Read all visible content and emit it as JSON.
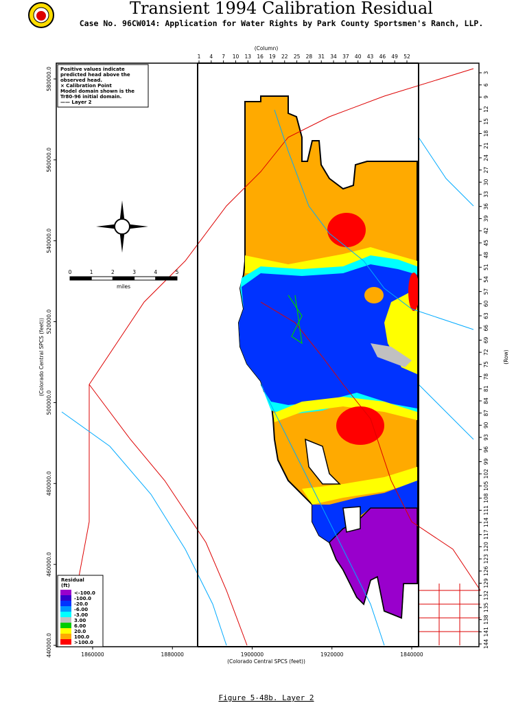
{
  "header": {
    "title": "Transient 1994 Calibration Residual",
    "subtitle": "Case No. 96CW014: Application for Water Rights by Park County Sportsmen's Ranch, LLP."
  },
  "axes": {
    "column_label": "(Column)",
    "columns": [
      "1",
      "4",
      "7",
      "10",
      "13",
      "16",
      "19",
      "22",
      "25",
      "28",
      "31",
      "34",
      "37",
      "40",
      "43",
      "46",
      "49",
      "52"
    ],
    "row_label": "(Row)",
    "rows": [
      "3",
      "6",
      "9",
      "12",
      "15",
      "18",
      "21",
      "24",
      "27",
      "30",
      "33",
      "36",
      "39",
      "42",
      "45",
      "48",
      "51",
      "54",
      "57",
      "60",
      "63",
      "66",
      "69",
      "72",
      "75",
      "78",
      "81",
      "84",
      "87",
      "90",
      "93",
      "96",
      "99",
      "102",
      "105",
      "108",
      "111",
      "114",
      "117",
      "120",
      "123",
      "126",
      "129",
      "132",
      "135",
      "138",
      "141",
      "144"
    ],
    "x_label": "(Colorado Central SPCS (feet))",
    "x_ticks": [
      "1860000",
      "1880000",
      "1900000",
      "1920000",
      "1840000"
    ],
    "y_label": "(Colorado Central SPCS (feet))",
    "y_ticks": [
      "580000.0",
      "560000.0",
      "540000.0",
      "520000.0",
      "500000.0",
      "480000.0",
      "460000.0",
      "440000.0"
    ]
  },
  "notes": [
    "Positive values indicate",
    "predicted head above the",
    "observed head.",
    "× Calibration Point",
    "Model domain shown is the",
    "Tr80-96 initial domain.",
    "—— Layer 2"
  ],
  "scale": {
    "ticks": [
      "0",
      "1",
      "2",
      "3",
      "4",
      "5"
    ],
    "unit": "miles"
  },
  "legend": {
    "title": "Residual",
    "unit": "(ft)",
    "items": [
      {
        "label": "<-100.0",
        "color": "#9900cc"
      },
      {
        "label": "-100.0",
        "color": "#3300cc"
      },
      {
        "label": "-20.0",
        "color": "#0033ff"
      },
      {
        "label": "-6.00",
        "color": "#0099ff"
      },
      {
        "label": "-3.00",
        "color": "#00ffff"
      },
      {
        "label": "3.00",
        "color": "#c0c0c0"
      },
      {
        "label": "6.00",
        "color": "#00cc00"
      },
      {
        "label": "20.0",
        "color": "#ffff00"
      },
      {
        "label": "100.0",
        "color": "#ffaa00"
      },
      {
        "label": ">100.0",
        "color": "#ff0000"
      }
    ]
  },
  "caption": "Figure 5-48b.  Layer 2"
}
